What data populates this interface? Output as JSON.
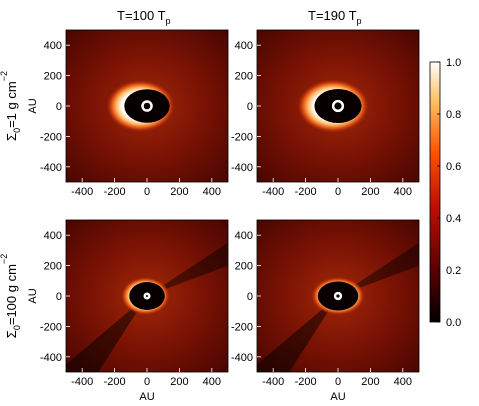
{
  "figure": {
    "column_titles": [
      {
        "base": "T=100 T",
        "sub": "p"
      },
      {
        "base": "T=190 T",
        "sub": "p"
      }
    ],
    "row_labels": [
      {
        "base": "Σ",
        "sub": "0",
        "rest": "=1  g  cm",
        "sup": "−2"
      },
      {
        "base": "Σ",
        "sub": "0",
        "rest": "=100  g  cm",
        "sup": "−2"
      }
    ]
  },
  "chart_data": [
    {
      "type": "image",
      "xlim": [
        -500,
        500
      ],
      "ylim": [
        -500,
        500
      ],
      "xticks": [
        -400,
        -200,
        0,
        200,
        400
      ],
      "yticks": [
        -400,
        -200,
        0,
        200,
        400
      ],
      "ylabel": "AU"
    },
    {
      "type": "image",
      "xlim": [
        -500,
        500
      ],
      "ylim": [
        -500,
        500
      ],
      "xticks": [
        -400,
        -200,
        0,
        200,
        400
      ],
      "yticks": [
        -400,
        -200,
        0,
        200,
        400
      ]
    },
    {
      "type": "image",
      "xlim": [
        -500,
        500
      ],
      "ylim": [
        -500,
        500
      ],
      "xticks": [
        -400,
        -200,
        0,
        200,
        400
      ],
      "yticks": [
        -400,
        -200,
        0,
        200,
        400
      ],
      "xlabel": "AU",
      "ylabel": "AU"
    },
    {
      "type": "image",
      "xlim": [
        -500,
        500
      ],
      "ylim": [
        -500,
        500
      ],
      "xticks": [
        -400,
        -200,
        0,
        200,
        400
      ],
      "yticks": [
        -400,
        -200,
        0,
        200,
        400
      ],
      "xlabel": "AU"
    },
    {
      "type": "colorbar",
      "ylim": [
        0,
        1
      ],
      "yticks": [
        {
          "value": 0,
          "label": "0.0"
        },
        0.2,
        0.4,
        0.6,
        0.8,
        {
          "value": 1,
          "label": "1.0"
        }
      ]
    }
  ]
}
